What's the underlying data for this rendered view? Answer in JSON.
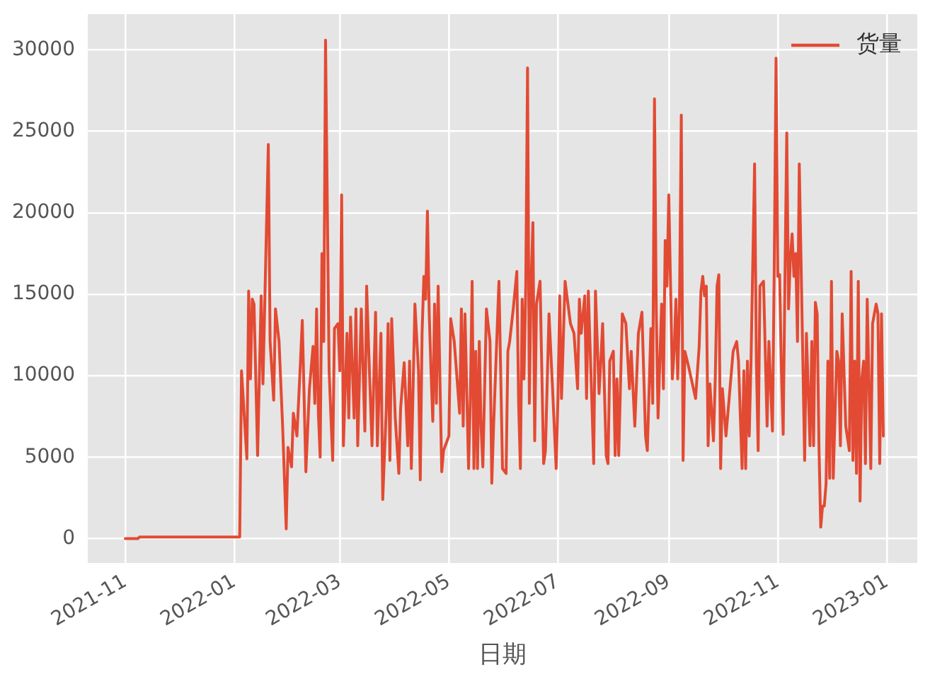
{
  "chart_data": {
    "type": "line",
    "xlabel": "日期",
    "x": [
      "2021-11-01",
      "2021-11-08",
      "2021-11-09",
      "2022-01-04",
      "2022-01-05",
      "2022-01-08",
      "2022-01-09",
      "2022-01-10",
      "2022-01-11",
      "2022-01-12",
      "2022-01-13",
      "2022-01-14",
      "2022-01-16",
      "2022-01-17",
      "2022-01-20",
      "2022-01-21",
      "2022-01-23",
      "2022-01-24",
      "2022-01-26",
      "2022-01-28",
      "2022-01-30",
      "2022-01-31",
      "2022-02-02",
      "2022-02-03",
      "2022-02-05",
      "2022-02-07",
      "2022-02-08",
      "2022-02-10",
      "2022-02-12",
      "2022-02-14",
      "2022-02-15",
      "2022-02-16",
      "2022-02-17",
      "2022-02-18",
      "2022-02-19",
      "2022-02-20",
      "2022-02-21",
      "2022-02-23",
      "2022-02-25",
      "2022-02-26",
      "2022-02-28",
      "2022-03-01",
      "2022-03-02",
      "2022-03-03",
      "2022-03-05",
      "2022-03-06",
      "2022-03-07",
      "2022-03-09",
      "2022-03-10",
      "2022-03-11",
      "2022-03-13",
      "2022-03-15",
      "2022-03-16",
      "2022-03-17",
      "2022-03-19",
      "2022-03-21",
      "2022-03-22",
      "2022-03-24",
      "2022-03-25",
      "2022-03-27",
      "2022-03-28",
      "2022-03-29",
      "2022-03-30",
      "2022-04-01",
      "2022-04-03",
      "2022-04-04",
      "2022-04-06",
      "2022-04-08",
      "2022-04-09",
      "2022-04-10",
      "2022-04-12",
      "2022-04-14",
      "2022-04-15",
      "2022-04-16",
      "2022-04-17",
      "2022-04-18",
      "2022-04-19",
      "2022-04-20",
      "2022-04-21",
      "2022-04-22",
      "2022-04-23",
      "2022-04-24",
      "2022-04-25",
      "2022-04-26",
      "2022-04-27",
      "2022-04-28",
      "2022-05-01",
      "2022-05-02",
      "2022-05-04",
      "2022-05-07",
      "2022-05-08",
      "2022-05-09",
      "2022-05-10",
      "2022-05-12",
      "2022-05-13",
      "2022-05-14",
      "2022-05-15",
      "2022-05-16",
      "2022-05-17",
      "2022-05-18",
      "2022-05-19",
      "2022-05-20",
      "2022-05-22",
      "2022-05-24",
      "2022-05-25",
      "2022-05-26",
      "2022-05-29",
      "2022-05-31",
      "2022-06-02",
      "2022-06-03",
      "2022-06-04",
      "2022-06-06",
      "2022-06-08",
      "2022-06-09",
      "2022-06-10",
      "2022-06-11",
      "2022-06-12",
      "2022-06-13",
      "2022-06-14",
      "2022-06-15",
      "2022-06-16",
      "2022-06-17",
      "2022-06-18",
      "2022-06-19",
      "2022-06-21",
      "2022-06-23",
      "2022-06-24",
      "2022-06-26",
      "2022-06-28",
      "2022-06-30",
      "2022-07-01",
      "2022-07-02",
      "2022-07-03",
      "2022-07-05",
      "2022-07-08",
      "2022-07-10",
      "2022-07-12",
      "2022-07-13",
      "2022-07-14",
      "2022-07-16",
      "2022-07-17",
      "2022-07-18",
      "2022-07-20",
      "2022-07-21",
      "2022-07-22",
      "2022-07-24",
      "2022-07-25",
      "2022-07-26",
      "2022-07-28",
      "2022-07-29",
      "2022-07-30",
      "2022-08-01",
      "2022-08-02",
      "2022-08-03",
      "2022-08-04",
      "2022-08-06",
      "2022-08-08",
      "2022-08-10",
      "2022-08-11",
      "2022-08-13",
      "2022-08-15",
      "2022-08-17",
      "2022-08-19",
      "2022-08-20",
      "2022-08-22",
      "2022-08-23",
      "2022-08-24",
      "2022-08-25",
      "2022-08-26",
      "2022-08-28",
      "2022-08-29",
      "2022-08-30",
      "2022-08-31",
      "2022-09-01",
      "2022-09-02",
      "2022-09-03",
      "2022-09-04",
      "2022-09-05",
      "2022-09-06",
      "2022-09-07",
      "2022-09-08",
      "2022-09-09",
      "2022-09-10",
      "2022-09-12",
      "2022-09-16",
      "2022-09-18",
      "2022-09-19",
      "2022-09-20",
      "2022-09-21",
      "2022-09-22",
      "2022-09-23",
      "2022-09-24",
      "2022-09-26",
      "2022-09-27",
      "2022-09-28",
      "2022-09-29",
      "2022-09-30",
      "2022-10-01",
      "2022-10-03",
      "2022-10-07",
      "2022-10-09",
      "2022-10-10",
      "2022-10-12",
      "2022-10-13",
      "2022-10-14",
      "2022-10-15",
      "2022-10-16",
      "2022-10-17",
      "2022-10-19",
      "2022-10-20",
      "2022-10-21",
      "2022-10-22",
      "2022-10-24",
      "2022-10-26",
      "2022-10-27",
      "2022-10-29",
      "2022-10-30",
      "2022-10-31",
      "2022-11-01",
      "2022-11-02",
      "2022-11-03",
      "2022-11-04",
      "2022-11-05",
      "2022-11-06",
      "2022-11-07",
      "2022-11-08",
      "2022-11-09",
      "2022-11-10",
      "2022-11-11",
      "2022-11-12",
      "2022-11-13",
      "2022-11-15",
      "2022-11-16",
      "2022-11-17",
      "2022-11-19",
      "2022-11-20",
      "2022-11-21",
      "2022-11-22",
      "2022-11-23",
      "2022-11-24",
      "2022-11-25",
      "2022-11-26",
      "2022-11-27",
      "2022-11-28",
      "2022-11-29",
      "2022-11-30",
      "2022-12-01",
      "2022-12-02",
      "2022-12-04",
      "2022-12-05",
      "2022-12-06",
      "2022-12-07",
      "2022-12-09",
      "2022-12-11",
      "2022-12-12",
      "2022-12-13",
      "2022-12-14",
      "2022-12-15",
      "2022-12-16",
      "2022-12-17",
      "2022-12-18",
      "2022-12-19",
      "2022-12-20",
      "2022-12-21",
      "2022-12-23",
      "2022-12-24",
      "2022-12-26",
      "2022-12-27",
      "2022-12-28",
      "2022-12-29",
      "2022-12-30"
    ],
    "series": [
      {
        "name": "货量",
        "color": "#e24a33",
        "values": [
          0,
          0,
          100,
          100,
          10300,
          4900,
          15200,
          9800,
          14700,
          14400,
          9800,
          5100,
          14900,
          9500,
          24200,
          12100,
          8500,
          14100,
          12100,
          6900,
          600,
          5600,
          4400,
          7700,
          6300,
          10900,
          13400,
          4100,
          9200,
          11800,
          8300,
          14100,
          7700,
          5000,
          17500,
          12100,
          30600,
          10300,
          4800,
          12900,
          13200,
          10300,
          21100,
          5700,
          12600,
          7400,
          13600,
          7400,
          14100,
          5700,
          14100,
          6600,
          15500,
          12100,
          5700,
          13900,
          5700,
          12600,
          2400,
          8000,
          13200,
          4800,
          13500,
          7400,
          4000,
          8000,
          10800,
          5700,
          10900,
          4300,
          14400,
          10300,
          3600,
          12600,
          16100,
          14700,
          20100,
          13800,
          10300,
          7200,
          14400,
          8300,
          15500,
          9800,
          4100,
          5400,
          6300,
          13500,
          12100,
          7700,
          14100,
          6900,
          13800,
          4300,
          8600,
          15800,
          4300,
          11500,
          4300,
          12100,
          6900,
          4400,
          14100,
          12100,
          3400,
          6900,
          15800,
          4300,
          4000,
          11500,
          12100,
          14100,
          16400,
          8300,
          4300,
          14700,
          9800,
          15500,
          28900,
          8300,
          15800,
          19400,
          6000,
          14400,
          15800,
          4600,
          5400,
          13800,
          9200,
          4300,
          8600,
          14900,
          8600,
          15800,
          13200,
          12600,
          9200,
          14700,
          12600,
          14900,
          8600,
          15200,
          8300,
          4600,
          15200,
          8900,
          10900,
          13200,
          5100,
          4600,
          10900,
          11500,
          5100,
          9800,
          5100,
          13800,
          13200,
          9200,
          11500,
          6900,
          12600,
          13900,
          6300,
          5400,
          12900,
          8300,
          27000,
          14100,
          7400,
          14400,
          9200,
          18300,
          15500,
          21100,
          15500,
          9800,
          11500,
          14700,
          9800,
          14400,
          26000,
          4800,
          11500,
          10600,
          8600,
          11800,
          15200,
          16100,
          14900,
          15500,
          5700,
          9500,
          6000,
          9800,
          15500,
          16200,
          4300,
          9200,
          6300,
          11500,
          12100,
          10900,
          4300,
          10300,
          4300,
          10900,
          6300,
          10900,
          23000,
          10900,
          5400,
          15500,
          15800,
          6900,
          12100,
          6600,
          16700,
          29500,
          16100,
          16200,
          10300,
          6400,
          16100,
          24900,
          14100,
          17200,
          18700,
          16100,
          17500,
          12100,
          23000,
          10900,
          4800,
          12600,
          5700,
          12100,
          5700,
          14500,
          13800,
          5700,
          700,
          2000,
          2000,
          3400,
          10900,
          3700,
          15800,
          3700,
          11500,
          10900,
          5700,
          13800,
          6900,
          5400,
          16400,
          4800,
          10900,
          4000,
          15800,
          2300,
          9800,
          10900,
          4600,
          14700,
          4300,
          13200,
          14400,
          13800,
          4600,
          13800,
          6300
        ]
      }
    ],
    "xlim": [
      "2021-10-11",
      "2023-01-18"
    ],
    "ylim": [
      -1500,
      32200
    ],
    "xticks": [
      "2021-11",
      "2022-01",
      "2022-03",
      "2022-05",
      "2022-07",
      "2022-09",
      "2022-11",
      "2023-01"
    ],
    "yticks": [
      0,
      5000,
      10000,
      15000,
      20000,
      25000,
      30000
    ],
    "grid": true,
    "legend": "top right"
  }
}
